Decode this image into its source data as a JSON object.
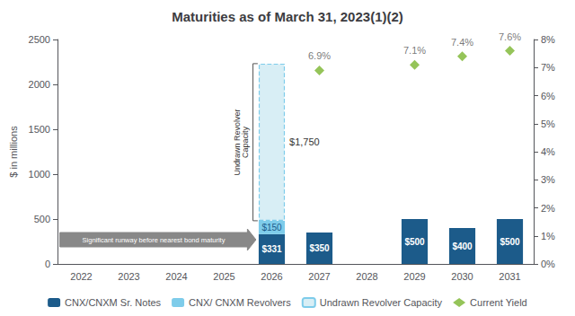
{
  "chart_data": {
    "type": "bar",
    "title": "Maturities as of March 31, 2023(1)(2)",
    "categories": [
      "2022",
      "2023",
      "2024",
      "2025",
      "2026",
      "2027",
      "2028",
      "2029",
      "2030",
      "2031"
    ],
    "series": [
      {
        "name": "CNX/CNXM Sr. Notes",
        "color": "#1C5B8A",
        "values": [
          0,
          0,
          0,
          0,
          331,
          350,
          0,
          500,
          400,
          500
        ],
        "value_labels": [
          null,
          null,
          null,
          null,
          "$331",
          "$350",
          null,
          "$500",
          "$400",
          "$500"
        ]
      },
      {
        "name": "CNX/ CNXM Revolvers",
        "color": "#7ECCEA",
        "values": [
          0,
          0,
          0,
          0,
          150,
          0,
          0,
          0,
          0,
          0
        ],
        "value_labels": [
          null,
          null,
          null,
          null,
          "$150",
          null,
          null,
          null,
          null,
          null
        ]
      },
      {
        "name": "Undrawn Revolver Capacity",
        "color": "#D8EEF5",
        "line_style": "dashed",
        "values": [
          null,
          null,
          null,
          null,
          1750,
          null,
          null,
          null,
          null,
          null
        ],
        "value_labels": [
          null,
          null,
          null,
          null,
          "$1,750",
          null,
          null,
          null,
          null,
          null
        ]
      },
      {
        "name": "Current Yield",
        "type": "scatter",
        "axis": "y2",
        "marker": "diamond",
        "color": "#7AB530",
        "values": [
          null,
          null,
          null,
          null,
          null,
          6.9,
          null,
          7.1,
          7.4,
          7.6
        ],
        "value_labels": [
          null,
          null,
          null,
          null,
          null,
          "6.9%",
          null,
          "7.1%",
          "7.4%",
          "7.6%"
        ]
      }
    ],
    "stacked": true,
    "data_labels": true,
    "ylabel": "$ in millions",
    "ylim": [
      0,
      2500
    ],
    "yticks": [
      0,
      500,
      1000,
      1500,
      2000,
      2500
    ],
    "y2lim": [
      0,
      8
    ],
    "y2ticks": [
      {
        "value": 0,
        "label": "0%"
      },
      {
        "value": 1,
        "label": "1%"
      },
      {
        "value": 2,
        "label": "2%"
      },
      {
        "value": 3,
        "label": "3%"
      },
      {
        "value": 4,
        "label": "4%"
      },
      {
        "value": 5,
        "label": "5%"
      },
      {
        "value": 6,
        "label": "6%"
      },
      {
        "value": 7,
        "label": "7%"
      },
      {
        "value": 8,
        "label": "8%"
      }
    ],
    "grid": false,
    "legend": "bottom",
    "annotations": [
      "Significant runway before nearest bond maturity",
      "Undrawn Revolver\nCapacity"
    ]
  }
}
